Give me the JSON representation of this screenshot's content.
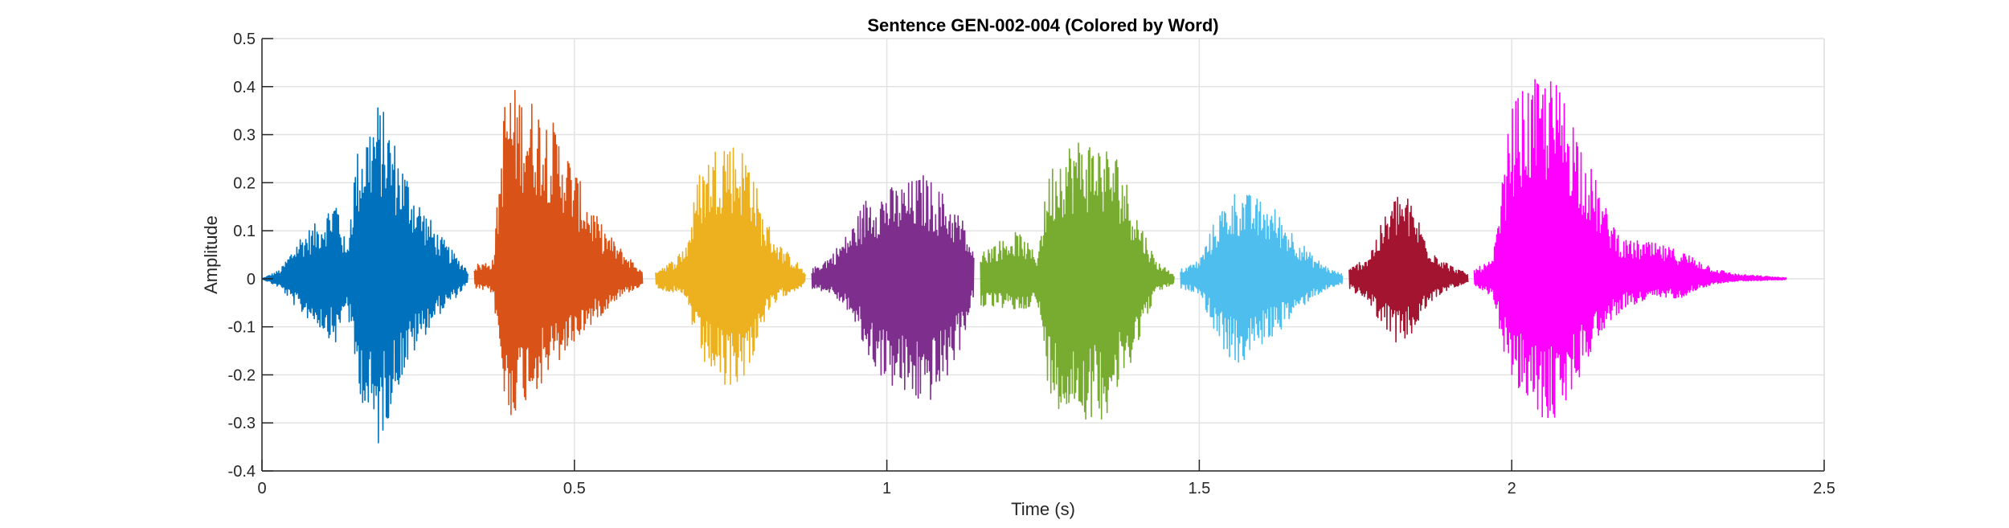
{
  "chart_data": {
    "type": "line",
    "title": "Sentence GEN-002-004 (Colored by Word)",
    "xlabel": "Time (s)",
    "ylabel": "Amplitude",
    "xlim": [
      0,
      2.5
    ],
    "ylim": [
      -0.4,
      0.5
    ],
    "xticks": [
      0,
      0.5,
      1,
      1.5,
      2,
      2.5
    ],
    "xtick_labels": [
      "0",
      "0.5",
      "1",
      "1.5",
      "2",
      "2.5"
    ],
    "yticks": [
      0.5,
      0.4,
      0.3,
      0.2,
      0.1,
      0,
      -0.1,
      -0.2,
      -0.3,
      -0.4
    ],
    "ytick_labels": [
      "0.5",
      "0.4",
      "0.3",
      "0.2",
      "0.1",
      "0",
      "-0.1",
      "-0.2",
      "-0.3",
      "-0.4"
    ],
    "grid": true,
    "series": [
      {
        "color": "#0072BD",
        "segments": [
          {
            "start": 0.0,
            "end": 0.33,
            "envelope": [
              [
                0.0,
                0.0,
                0.0
              ],
              [
                0.03,
                0.02,
                -0.02
              ],
              [
                0.06,
                0.09,
                -0.07
              ],
              [
                0.09,
                0.12,
                -0.1
              ],
              [
                0.12,
                0.18,
                -0.14
              ],
              [
                0.135,
                0.06,
                -0.05
              ],
              [
                0.15,
                0.26,
                -0.2
              ],
              [
                0.17,
                0.33,
                -0.31
              ],
              [
                0.185,
                0.37,
                -0.36
              ],
              [
                0.2,
                0.34,
                -0.3
              ],
              [
                0.22,
                0.26,
                -0.22
              ],
              [
                0.25,
                0.17,
                -0.14
              ],
              [
                0.28,
                0.1,
                -0.08
              ],
              [
                0.31,
                0.05,
                -0.04
              ],
              [
                0.33,
                0.02,
                -0.01
              ]
            ]
          }
        ]
      },
      {
        "color": "#D95319",
        "segments": [
          {
            "start": 0.34,
            "end": 0.61,
            "envelope": [
              [
                0.34,
                0.03,
                -0.02
              ],
              [
                0.37,
                0.04,
                -0.03
              ],
              [
                0.39,
                0.41,
                -0.3
              ],
              [
                0.42,
                0.39,
                -0.26
              ],
              [
                0.45,
                0.36,
                -0.22
              ],
              [
                0.48,
                0.3,
                -0.17
              ],
              [
                0.51,
                0.2,
                -0.12
              ],
              [
                0.54,
                0.12,
                -0.08
              ],
              [
                0.57,
                0.07,
                -0.04
              ],
              [
                0.6,
                0.03,
                -0.02
              ],
              [
                0.61,
                0.01,
                -0.01
              ]
            ]
          }
        ]
      },
      {
        "color": "#EDB120",
        "segments": [
          {
            "start": 0.63,
            "end": 0.87,
            "envelope": [
              [
                0.63,
                0.02,
                -0.02
              ],
              [
                0.66,
                0.04,
                -0.03
              ],
              [
                0.68,
                0.08,
                -0.05
              ],
              [
                0.7,
                0.23,
                -0.17
              ],
              [
                0.72,
                0.27,
                -0.2
              ],
              [
                0.74,
                0.31,
                -0.24
              ],
              [
                0.76,
                0.28,
                -0.22
              ],
              [
                0.78,
                0.27,
                -0.19
              ],
              [
                0.8,
                0.14,
                -0.1
              ],
              [
                0.83,
                0.07,
                -0.04
              ],
              [
                0.86,
                0.03,
                -0.02
              ],
              [
                0.87,
                0.01,
                -0.01
              ]
            ]
          }
        ]
      },
      {
        "color": "#7E2F8E",
        "segments": [
          {
            "start": 0.88,
            "end": 1.14,
            "envelope": [
              [
                0.88,
                0.02,
                -0.02
              ],
              [
                0.91,
                0.05,
                -0.03
              ],
              [
                0.94,
                0.1,
                -0.07
              ],
              [
                0.97,
                0.18,
                -0.17
              ],
              [
                1.0,
                0.19,
                -0.22
              ],
              [
                1.03,
                0.2,
                -0.25
              ],
              [
                1.06,
                0.22,
                -0.27
              ],
              [
                1.09,
                0.18,
                -0.23
              ],
              [
                1.12,
                0.13,
                -0.14
              ],
              [
                1.14,
                0.05,
                -0.03
              ]
            ]
          }
        ]
      },
      {
        "color": "#77AC30",
        "segments": [
          {
            "start": 1.15,
            "end": 1.46,
            "envelope": [
              [
                1.15,
                0.06,
                -0.06
              ],
              [
                1.18,
                0.08,
                -0.06
              ],
              [
                1.21,
                0.1,
                -0.07
              ],
              [
                1.24,
                0.05,
                -0.05
              ],
              [
                1.26,
                0.23,
                -0.24
              ],
              [
                1.28,
                0.28,
                -0.28
              ],
              [
                1.31,
                0.3,
                -0.29
              ],
              [
                1.34,
                0.29,
                -0.3
              ],
              [
                1.37,
                0.26,
                -0.25
              ],
              [
                1.4,
                0.14,
                -0.14
              ],
              [
                1.43,
                0.04,
                -0.03
              ],
              [
                1.46,
                0.01,
                -0.01
              ]
            ]
          }
        ]
      },
      {
        "color": "#4DBEEE",
        "segments": [
          {
            "start": 1.47,
            "end": 1.73,
            "envelope": [
              [
                1.47,
                0.02,
                -0.02
              ],
              [
                1.5,
                0.04,
                -0.03
              ],
              [
                1.53,
                0.14,
                -0.13
              ],
              [
                1.56,
                0.19,
                -0.19
              ],
              [
                1.59,
                0.17,
                -0.15
              ],
              [
                1.62,
                0.15,
                -0.12
              ],
              [
                1.65,
                0.1,
                -0.08
              ],
              [
                1.68,
                0.05,
                -0.04
              ],
              [
                1.71,
                0.02,
                -0.02
              ],
              [
                1.73,
                0.01,
                -0.01
              ]
            ]
          }
        ]
      },
      {
        "color": "#A2142F",
        "segments": [
          {
            "start": 1.74,
            "end": 1.93,
            "envelope": [
              [
                1.74,
                0.02,
                -0.02
              ],
              [
                1.77,
                0.05,
                -0.05
              ],
              [
                1.8,
                0.14,
                -0.11
              ],
              [
                1.82,
                0.19,
                -0.14
              ],
              [
                1.84,
                0.16,
                -0.12
              ],
              [
                1.87,
                0.07,
                -0.05
              ],
              [
                1.9,
                0.03,
                -0.02
              ],
              [
                1.93,
                0.01,
                -0.01
              ]
            ]
          }
        ]
      },
      {
        "color": "#FF00FF",
        "segments": [
          {
            "start": 1.94,
            "end": 2.44,
            "envelope": [
              [
                1.94,
                0.02,
                -0.02
              ],
              [
                1.97,
                0.04,
                -0.04
              ],
              [
                2.0,
                0.37,
                -0.23
              ],
              [
                2.03,
                0.41,
                -0.27
              ],
              [
                2.06,
                0.43,
                -0.31
              ],
              [
                2.09,
                0.38,
                -0.26
              ],
              [
                2.12,
                0.26,
                -0.17
              ],
              [
                2.15,
                0.15,
                -0.1
              ],
              [
                2.18,
                0.08,
                -0.06
              ],
              [
                2.21,
                0.08,
                -0.05
              ],
              [
                2.24,
                0.07,
                -0.04
              ],
              [
                2.27,
                0.06,
                -0.04
              ],
              [
                2.3,
                0.04,
                -0.02
              ],
              [
                2.33,
                0.02,
                -0.01
              ],
              [
                2.36,
                0.01,
                -0.005
              ],
              [
                2.44,
                0.002,
                -0.002
              ]
            ]
          }
        ]
      }
    ]
  }
}
